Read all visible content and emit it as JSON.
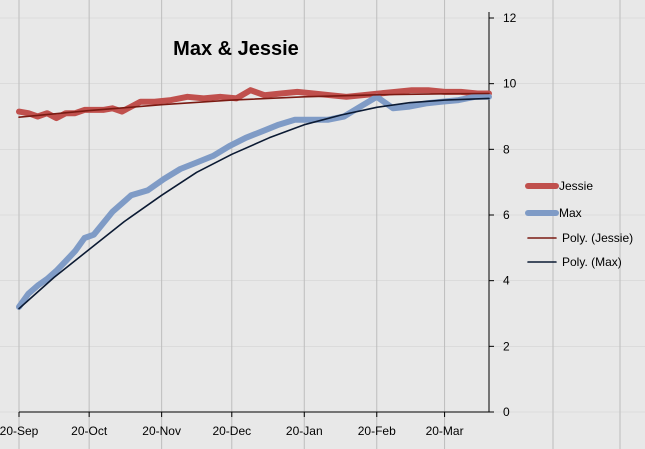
{
  "chart_data": {
    "type": "line",
    "title": "Max & Jessie",
    "xlabel": "",
    "ylabel": "",
    "ylim": [
      0,
      12
    ],
    "yticks": [
      0,
      2,
      4,
      6,
      8,
      10,
      12
    ],
    "x_tick_labels": [
      "20-Sep",
      "20-Oct",
      "20-Nov",
      "20-Dec",
      "20-Jan",
      "20-Feb",
      "20-Mar"
    ],
    "x_range": [
      "2011-09-20",
      "2012-04-08"
    ],
    "grid": true,
    "legend_position": "right",
    "colors": {
      "background": "#e8e8e8",
      "grid": "#bdbdbd",
      "jessie": "#c0504d",
      "max": "#7f9bc6",
      "poly_jessie": "#7a1a12",
      "poly_max": "#0b1a33"
    },
    "series": [
      {
        "name": "Jessie",
        "x": [
          "2011-09-20",
          "2011-09-24",
          "2011-09-28",
          "2011-10-02",
          "2011-10-06",
          "2011-10-10",
          "2011-10-14",
          "2011-10-18",
          "2011-10-22",
          "2011-10-26",
          "2011-10-30",
          "2011-11-03",
          "2011-11-07",
          "2011-11-11",
          "2011-11-17",
          "2011-11-24",
          "2011-12-01",
          "2011-12-08",
          "2011-12-15",
          "2011-12-22",
          "2011-12-28",
          "2012-01-03",
          "2012-01-10",
          "2012-01-17",
          "2012-01-24",
          "2012-01-31",
          "2012-02-07",
          "2012-02-14",
          "2012-02-21",
          "2012-02-28",
          "2012-03-06",
          "2012-03-13",
          "2012-03-20",
          "2012-03-27",
          "2012-04-03",
          "2012-04-08"
        ],
        "values": [
          9.15,
          9.1,
          9.0,
          9.1,
          8.95,
          9.1,
          9.1,
          9.2,
          9.2,
          9.2,
          9.25,
          9.15,
          9.3,
          9.45,
          9.45,
          9.5,
          9.6,
          9.55,
          9.6,
          9.55,
          9.8,
          9.65,
          9.7,
          9.75,
          9.7,
          9.65,
          9.6,
          9.65,
          9.7,
          9.75,
          9.8,
          9.8,
          9.75,
          9.75,
          9.7,
          9.7
        ]
      },
      {
        "name": "Max",
        "x": [
          "2011-09-20",
          "2011-09-24",
          "2011-09-28",
          "2011-10-02",
          "2011-10-06",
          "2011-10-10",
          "2011-10-14",
          "2011-10-18",
          "2011-10-22",
          "2011-10-26",
          "2011-10-30",
          "2011-11-03",
          "2011-11-07",
          "2011-11-14",
          "2011-11-21",
          "2011-11-28",
          "2011-12-05",
          "2011-12-12",
          "2011-12-19",
          "2011-12-26",
          "2012-01-02",
          "2012-01-09",
          "2012-01-16",
          "2012-01-23",
          "2012-01-30",
          "2012-02-06",
          "2012-02-13",
          "2012-02-20",
          "2012-02-27",
          "2012-03-05",
          "2012-03-12",
          "2012-03-19",
          "2012-03-26",
          "2012-04-02",
          "2012-04-08"
        ],
        "values": [
          3.2,
          3.6,
          3.85,
          4.05,
          4.3,
          4.6,
          4.9,
          5.3,
          5.4,
          5.75,
          6.1,
          6.35,
          6.6,
          6.75,
          7.1,
          7.4,
          7.6,
          7.8,
          8.1,
          8.35,
          8.55,
          8.75,
          8.9,
          8.9,
          8.9,
          9.0,
          9.3,
          9.6,
          9.25,
          9.3,
          9.4,
          9.45,
          9.5,
          9.6,
          9.6
        ]
      },
      {
        "name": "Poly. (Jessie)",
        "trendline_of": "Jessie",
        "x": [
          "2011-09-20",
          "2011-10-20",
          "2011-11-20",
          "2011-12-20",
          "2012-01-20",
          "2012-02-20",
          "2012-03-20",
          "2012-04-08"
        ],
        "values": [
          8.98,
          9.18,
          9.36,
          9.5,
          9.6,
          9.66,
          9.69,
          9.7
        ]
      },
      {
        "name": "Poly. (Max)",
        "trendline_of": "Max",
        "x": [
          "2011-09-20",
          "2011-10-05",
          "2011-10-20",
          "2011-11-04",
          "2011-11-20",
          "2011-12-05",
          "2011-12-20",
          "2012-01-05",
          "2012-01-20",
          "2012-02-05",
          "2012-02-20",
          "2012-03-05",
          "2012-03-20",
          "2012-04-08"
        ],
        "values": [
          3.15,
          4.1,
          4.95,
          5.8,
          6.6,
          7.3,
          7.85,
          8.35,
          8.75,
          9.05,
          9.28,
          9.42,
          9.5,
          9.55
        ]
      }
    ]
  }
}
